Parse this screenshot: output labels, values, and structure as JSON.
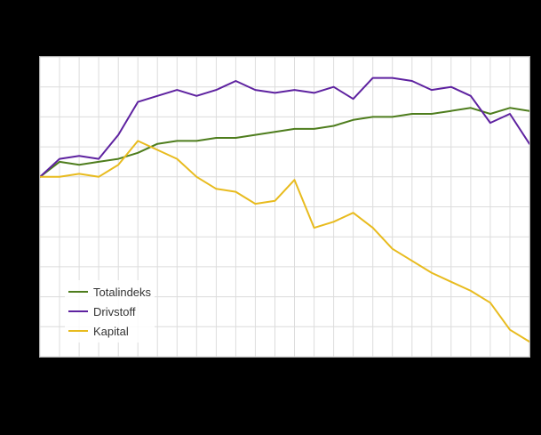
{
  "page": {
    "background": "#000000",
    "plot_background": "#ffffff"
  },
  "chart_data": {
    "type": "line",
    "title": "",
    "x": [
      1,
      2,
      3,
      4,
      5,
      6,
      7,
      8,
      9,
      10,
      11,
      12,
      13,
      14,
      15,
      16,
      17,
      18,
      19,
      20,
      21,
      22,
      23,
      24,
      25,
      26
    ],
    "series": [
      {
        "name": "Totalindeks",
        "color": "#4e7d1d",
        "values": [
          100,
          102.5,
          102,
          102.5,
          103,
          104,
          105.5,
          106,
          106,
          106.5,
          106.5,
          107,
          107.5,
          108,
          108,
          108.5,
          109.5,
          110,
          110,
          110.5,
          110.5,
          111,
          111.5,
          110.5,
          111.5,
          111
        ]
      },
      {
        "name": "Drivstoff",
        "color": "#5e22a0",
        "values": [
          100,
          103,
          103.5,
          103,
          107,
          112.5,
          113.5,
          114.5,
          113.5,
          114.5,
          116,
          114.5,
          114,
          114.5,
          114,
          115,
          113,
          116.5,
          116.5,
          116,
          114.5,
          115,
          113.5,
          109,
          110.5,
          105.5
        ]
      },
      {
        "name": "Kapital",
        "color": "#e8bb1e",
        "values": [
          100,
          100,
          100.5,
          100,
          102,
          106,
          104.5,
          103,
          100,
          98,
          97.5,
          95.5,
          96,
          99.5,
          91.5,
          92.5,
          94,
          91.5,
          88,
          86,
          84,
          82.5,
          81,
          79,
          74.5,
          72.5
        ]
      }
    ],
    "ylim": [
      70,
      120
    ],
    "y_grid_step": 5,
    "grid": true,
    "gridline_color": "#dcdcdc",
    "legend_position": "inside-bottom-left"
  },
  "legend": {
    "items": [
      {
        "label": "Totalindeks",
        "color": "#4e7d1d"
      },
      {
        "label": "Drivstoff",
        "color": "#5e22a0"
      },
      {
        "label": "Kapital",
        "color": "#e8bb1e"
      }
    ]
  }
}
